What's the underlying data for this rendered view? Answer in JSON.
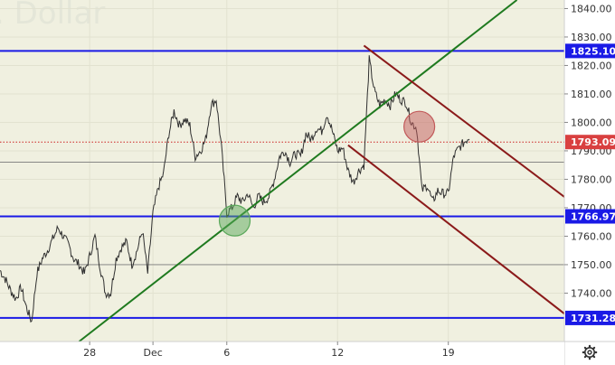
{
  "watermark": ". Dollar",
  "settings_icon": "gear-icon",
  "chart_data": {
    "type": "line",
    "title": "",
    "xlabel": "",
    "ylabel": "",
    "ylim": [
      1723,
      1843
    ],
    "y_ticks": [
      1840,
      1830,
      1820,
      1810,
      1800,
      1790,
      1780,
      1770,
      1760,
      1750,
      1740
    ],
    "y_tick_labels": [
      "1840.00",
      "1830.00",
      "1820.00",
      "1810.00",
      "1800.00",
      "1790.00",
      "1780.00",
      "1770.00",
      "1760.00",
      "1750.00",
      "1740.00"
    ],
    "x_tick_labels": [
      "28",
      "Dec",
      "6",
      "12",
      "19"
    ],
    "x_tick_sessions": [
      17,
      29,
      43,
      64,
      85
    ],
    "x_range_sessions": [
      0,
      107
    ],
    "series": [
      {
        "values": [
          [
            0,
            1748
          ],
          [
            1,
            1745
          ],
          [
            2,
            1741
          ],
          [
            3,
            1738
          ],
          [
            4,
            1742
          ],
          [
            5,
            1735
          ],
          [
            6,
            1730
          ],
          [
            7,
            1747
          ],
          [
            8,
            1752
          ],
          [
            9,
            1755
          ],
          [
            10,
            1759
          ],
          [
            11,
            1763
          ],
          [
            12,
            1760
          ],
          [
            13,
            1757
          ],
          [
            14,
            1752
          ],
          [
            15,
            1750
          ],
          [
            16,
            1747
          ],
          [
            17,
            1753
          ],
          [
            18,
            1760
          ],
          [
            19,
            1749
          ],
          [
            20,
            1740
          ],
          [
            21,
            1740
          ],
          [
            22,
            1752
          ],
          [
            23,
            1756
          ],
          [
            24,
            1758
          ],
          [
            25,
            1750
          ],
          [
            26,
            1755
          ],
          [
            27,
            1762
          ],
          [
            28,
            1747
          ],
          [
            29,
            1768
          ],
          [
            30,
            1777
          ],
          [
            31,
            1782
          ],
          [
            32,
            1796
          ],
          [
            33,
            1804
          ],
          [
            34,
            1799
          ],
          [
            35,
            1801
          ],
          [
            36,
            1799
          ],
          [
            37,
            1788
          ],
          [
            38,
            1790
          ],
          [
            39,
            1794
          ],
          [
            40,
            1806
          ],
          [
            41,
            1808
          ],
          [
            42,
            1791
          ],
          [
            43,
            1768
          ],
          [
            44,
            1770
          ],
          [
            45,
            1774
          ],
          [
            46,
            1772
          ],
          [
            47,
            1775
          ],
          [
            48,
            1770
          ],
          [
            49,
            1774
          ],
          [
            50,
            1772
          ],
          [
            51,
            1774
          ],
          [
            52,
            1780
          ],
          [
            53,
            1788
          ],
          [
            54,
            1790
          ],
          [
            55,
            1786
          ],
          [
            56,
            1789
          ],
          [
            57,
            1788
          ],
          [
            58,
            1796
          ],
          [
            59,
            1794
          ],
          [
            60,
            1798
          ],
          [
            61,
            1797
          ],
          [
            62,
            1803
          ],
          [
            63,
            1797
          ],
          [
            64,
            1790
          ],
          [
            65,
            1791
          ],
          [
            66,
            1783
          ],
          [
            67,
            1779
          ],
          [
            68,
            1783
          ],
          [
            69,
            1785
          ],
          [
            70,
            1822
          ],
          [
            71,
            1811
          ],
          [
            72,
            1806
          ],
          [
            73,
            1808
          ],
          [
            74,
            1806
          ],
          [
            75,
            1810
          ],
          [
            76,
            1808
          ],
          [
            77,
            1807
          ],
          [
            78,
            1800
          ],
          [
            79,
            1798
          ],
          [
            80,
            1776
          ],
          [
            81,
            1778
          ],
          [
            82,
            1772
          ],
          [
            83,
            1776
          ],
          [
            84,
            1775
          ],
          [
            85,
            1775
          ],
          [
            86,
            1788
          ],
          [
            87,
            1791
          ],
          [
            88,
            1793
          ],
          [
            89,
            1795
          ]
        ]
      }
    ],
    "horizontal_lines": [
      {
        "value": 1825.1,
        "label": "1825.10",
        "color": "#1a1ae6"
      },
      {
        "value": 1766.97,
        "label": "1766.97",
        "color": "#1a1ae6"
      },
      {
        "value": 1731.28,
        "label": "1731.28",
        "color": "#1a1ae6"
      },
      {
        "value": 1793.09,
        "label": "1793.09",
        "color": "#cc2222",
        "dotted": true
      },
      {
        "value": 1786.0,
        "label": "",
        "color": "#7a7a7a",
        "thin": true
      },
      {
        "value": 1750.0,
        "label": "",
        "color": "#7a7a7a",
        "thin": true
      }
    ],
    "trend_lines": [
      {
        "name": "uptrend",
        "color": "#1f7a1f",
        "points": [
          [
            15,
            1723
          ],
          [
            98,
            1843
          ]
        ]
      },
      {
        "name": "channel-upper",
        "color": "#8b1a1a",
        "points": [
          [
            69,
            1827
          ],
          [
            114,
            1764
          ]
        ]
      },
      {
        "name": "channel-lower",
        "color": "#8b1a1a",
        "points": [
          [
            66,
            1792
          ],
          [
            111,
            1727
          ]
        ]
      }
    ],
    "circles": [
      {
        "name": "support-circle",
        "session": 44.5,
        "value": 1765.5,
        "color": "#5aa85a"
      },
      {
        "name": "resistance-circle",
        "session": 79.5,
        "value": 1798.5,
        "color": "#c25a5a"
      }
    ],
    "colors": {
      "background": "#f0f0e0",
      "axis_background": "#ffffff",
      "price_line": "#303030",
      "badge_blue": "#1a1ae6",
      "badge_red": "#d94040"
    },
    "grid": true
  }
}
